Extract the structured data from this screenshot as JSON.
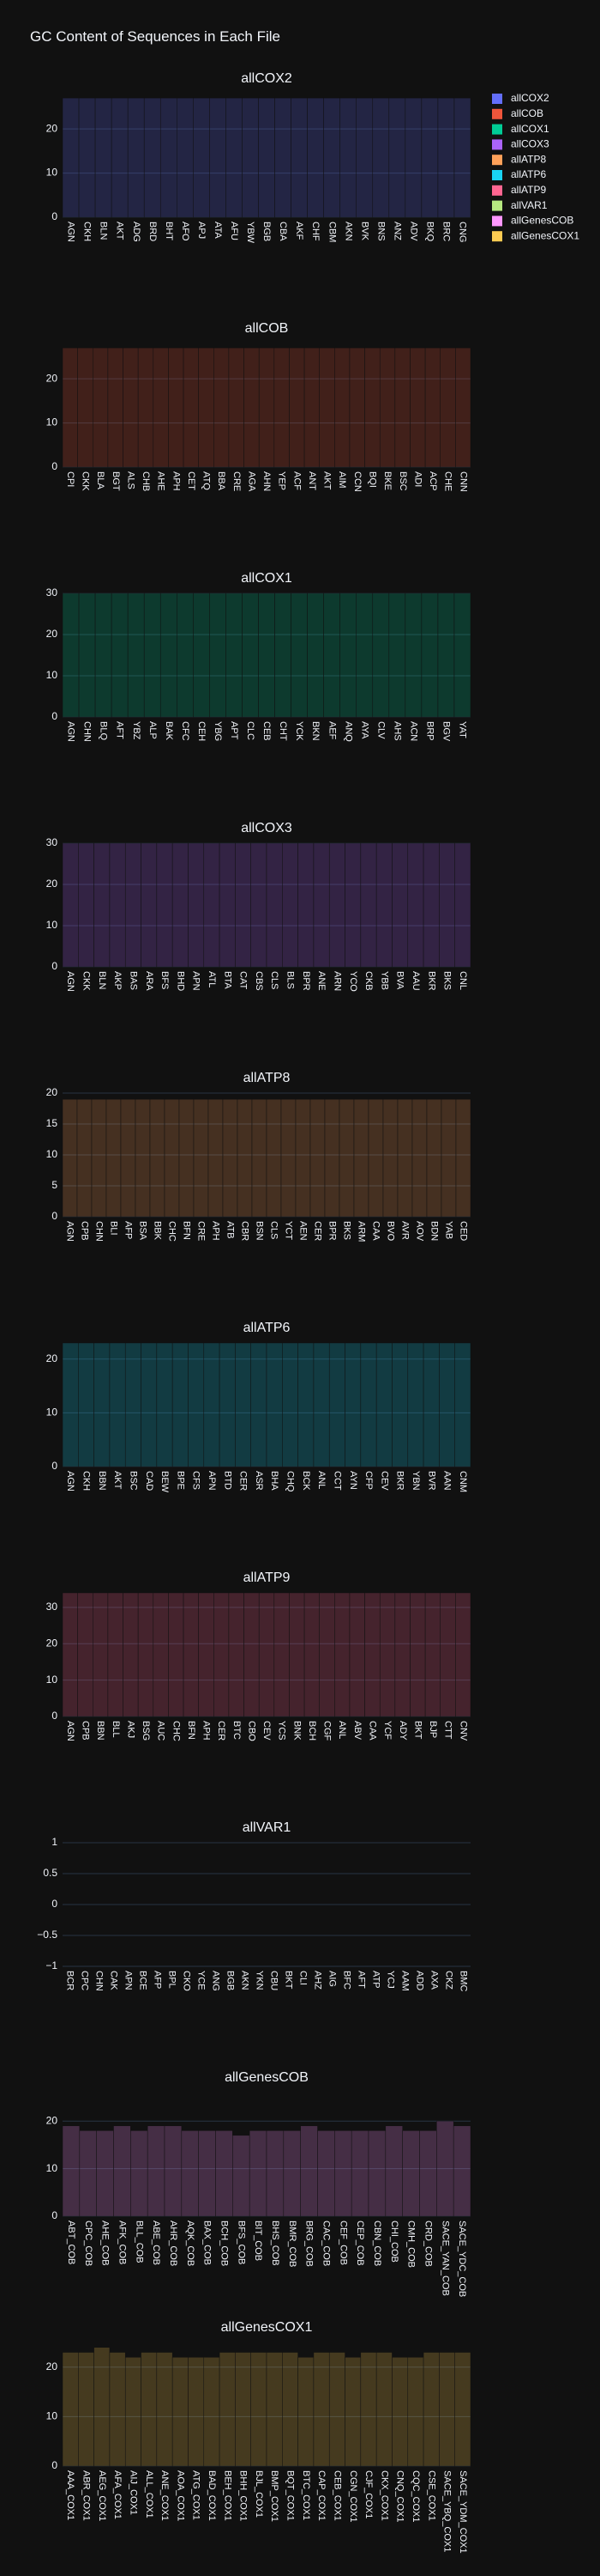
{
  "title": "GC Content of Sequences in Each File",
  "chart_data": [
    {
      "type": "bar",
      "title": "allCOX2",
      "color": "#636efa",
      "ylim": [
        0,
        28
      ],
      "yticks": [
        0,
        10,
        20
      ],
      "grid": true,
      "categories": [
        "AGN",
        "CKH",
        "BLN",
        "AKT",
        "ADG",
        "BRD",
        "BHT",
        "AFO",
        "APJ",
        "ATA",
        "AFU",
        "YBW",
        "BGB",
        "CBA",
        "AKF",
        "CHF",
        "CBM",
        "AKN",
        "BVK",
        "BNS",
        "ANZ",
        "ADV",
        "BKQ",
        "BRC",
        "CNG"
      ],
      "values": [
        27,
        27,
        27,
        27,
        27,
        27,
        27,
        27,
        27,
        27,
        27,
        27,
        27,
        27,
        27,
        27,
        27,
        27,
        27,
        27,
        27,
        27,
        27,
        27,
        27
      ]
    },
    {
      "type": "bar",
      "title": "allCOB",
      "color": "#EF553B",
      "ylim": [
        0,
        28
      ],
      "yticks": [
        0,
        10,
        20
      ],
      "grid": true,
      "categories": [
        "CPI",
        "CKK",
        "BLA",
        "BGT",
        "ALS",
        "CHB",
        "AHE",
        "APH",
        "CET",
        "ATQ",
        "BBA",
        "CRE",
        "AGA",
        "AHN",
        "YEP",
        "ACF",
        "ANT",
        "AKT",
        "AIM",
        "CCN",
        "BQI",
        "BKE",
        "BSC",
        "ADI",
        "ACP",
        "CHE",
        "CNN"
      ],
      "values": [
        27,
        27,
        27,
        27,
        27,
        27,
        27,
        27,
        27,
        27,
        27,
        27,
        27,
        27,
        27,
        27,
        27,
        27,
        27,
        27,
        27,
        27,
        27,
        27,
        27,
        27,
        27
      ]
    },
    {
      "type": "bar",
      "title": "allCOX1",
      "color": "#00cc96",
      "ylim": [
        0,
        30
      ],
      "yticks": [
        0,
        10,
        20,
        30
      ],
      "grid": true,
      "categories": [
        "AGN",
        "CHN",
        "BLQ",
        "AFT",
        "YBZ",
        "ALP",
        "BAK",
        "CFC",
        "CEH",
        "YBG",
        "APT",
        "CLC",
        "CEB",
        "CHT",
        "YCK",
        "BKN",
        "AEF",
        "ANQ",
        "AYA",
        "CLV",
        "AHS",
        "ACN",
        "BRP",
        "BGV",
        "YAT"
      ],
      "values": [
        30,
        30,
        30,
        30,
        30,
        30,
        30,
        30,
        30,
        30,
        30,
        30,
        30,
        30,
        30,
        30,
        30,
        30,
        30,
        30,
        30,
        30,
        30,
        30,
        30
      ]
    },
    {
      "type": "bar",
      "title": "allCOX3",
      "color": "#ab63fa",
      "ylim": [
        0,
        30
      ],
      "yticks": [
        0,
        10,
        20,
        30
      ],
      "grid": true,
      "categories": [
        "AGN",
        "CKK",
        "BLN",
        "AKP",
        "BAS",
        "ARA",
        "BFS",
        "BHD",
        "APN",
        "ATL",
        "BTA",
        "CAT",
        "CBS",
        "CLS",
        "BLS",
        "BPR",
        "ANE",
        "ARN",
        "YCO",
        "CKB",
        "YBB",
        "BVA",
        "AAU",
        "BKR",
        "BKS",
        "CNL"
      ],
      "values": [
        30,
        30,
        30,
        30,
        30,
        30,
        30,
        30,
        30,
        30,
        30,
        30,
        30,
        30,
        30,
        30,
        30,
        30,
        30,
        30,
        30,
        30,
        30,
        30,
        30,
        30
      ]
    },
    {
      "type": "bar",
      "title": "allATP8",
      "color": "#FFA15A",
      "ylim": [
        0,
        20
      ],
      "yticks": [
        0,
        5,
        10,
        15,
        20
      ],
      "grid": true,
      "categories": [
        "AGN",
        "CPB",
        "CHN",
        "BLI",
        "AFP",
        "BSA",
        "BBK",
        "CHC",
        "BFN",
        "CRE",
        "APH",
        "ATB",
        "CBR",
        "BSN",
        "CLS",
        "YCT",
        "AEN",
        "CER",
        "BPR",
        "BKS",
        "ARM",
        "CAA",
        "BVO",
        "AVR",
        "AOV",
        "BDN",
        "YAB",
        "CED"
      ],
      "values": [
        19,
        19,
        19,
        19,
        19,
        19,
        19,
        19,
        19,
        19,
        19,
        19,
        19,
        19,
        19,
        19,
        19,
        19,
        19,
        19,
        19,
        19,
        19,
        19,
        19,
        19,
        19,
        19
      ]
    },
    {
      "type": "bar",
      "title": "allATP6",
      "color": "#19d3f3",
      "ylim": [
        0,
        23
      ],
      "yticks": [
        0,
        10,
        20
      ],
      "grid": true,
      "categories": [
        "AGN",
        "CKH",
        "BBN",
        "AKT",
        "BSC",
        "CAD",
        "BEW",
        "BPE",
        "CFS",
        "APN",
        "BTD",
        "CER",
        "ASR",
        "BHA",
        "CHQ",
        "BCK",
        "ANL",
        "CCT",
        "AYN",
        "CFP",
        "CEV",
        "BKR",
        "YBN",
        "BVR",
        "AAN",
        "CNM"
      ],
      "values": [
        23,
        23,
        23,
        23,
        23,
        23,
        23,
        23,
        23,
        23,
        23,
        23,
        23,
        23,
        23,
        23,
        23,
        23,
        23,
        23,
        23,
        23,
        23,
        23,
        23,
        23
      ]
    },
    {
      "type": "bar",
      "title": "allATP9",
      "color": "#FF6692",
      "ylim": [
        0,
        34
      ],
      "yticks": [
        0,
        10,
        20,
        30
      ],
      "grid": true,
      "categories": [
        "AGN",
        "CPB",
        "BBN",
        "BLL",
        "AKJ",
        "BSG",
        "AUC",
        "CHC",
        "BFN",
        "APH",
        "CER",
        "BTC",
        "CBO",
        "CEV",
        "YCS",
        "BNK",
        "BCH",
        "CGF",
        "ANL",
        "ABV",
        "CAA",
        "YCF",
        "ADY",
        "BKT",
        "BJP",
        "CTT",
        "CNV"
      ],
      "values": [
        34,
        34,
        34,
        34,
        34,
        34,
        34,
        34,
        34,
        34,
        34,
        34,
        34,
        34,
        34,
        34,
        34,
        34,
        34,
        34,
        34,
        34,
        34,
        34,
        34,
        34,
        34
      ]
    },
    {
      "type": "bar",
      "title": "allVAR1",
      "color": "#B6E880",
      "ylim": [
        -1,
        1
      ],
      "yticks": [
        {
          "value": -1,
          "label": "−1"
        },
        {
          "value": -0.5,
          "label": "−0.5"
        },
        0,
        0.5,
        1
      ],
      "grid": true,
      "categories": [
        "BCR",
        "CPC",
        "CHN",
        "CAK",
        "APN",
        "BCE",
        "AFP",
        "BPL",
        "CKO",
        "YCE",
        "ANG",
        "BGB",
        "AKN",
        "YKN",
        "CBU",
        "BKT",
        "CLI",
        "AHZ",
        "AIG",
        "BFC",
        "AFT",
        "ATP",
        "YCJ",
        "AAM",
        "ADD",
        "AXA",
        "CKZ",
        "BMC"
      ],
      "values": [
        null,
        null,
        null,
        null,
        null,
        null,
        null,
        null,
        null,
        null,
        null,
        null,
        null,
        null,
        null,
        null,
        null,
        null,
        null,
        null,
        null,
        null,
        null,
        null,
        null,
        null,
        null,
        null
      ]
    },
    {
      "type": "bar",
      "title": "allGenesCOB",
      "color": "#FF97FF",
      "ylim": [
        0,
        26
      ],
      "yticks": [
        0,
        10,
        20
      ],
      "grid": true,
      "categories": [
        "ABT_COB",
        "CPC_COB",
        "AHE_COB",
        "AFK_COB",
        "BLL_COB",
        "ABE_COB",
        "AHR_COB",
        "AQK_COB",
        "BAX_COB",
        "BCH_COB",
        "BFS_COB",
        "BIT_COB",
        "BHS_COB",
        "BMR_COB",
        "BRG_COB",
        "CAC_COB",
        "CEF_COB",
        "CEP_COB",
        "CBN_COB",
        "CHI_COB",
        "CMH_COB",
        "CRD_COB",
        "SACE_YAN_COB",
        "SACE_YDC_COB"
      ],
      "values": [
        19,
        18,
        18,
        19,
        18,
        19,
        19,
        18,
        18,
        18,
        17,
        18,
        18,
        18,
        19,
        18,
        18,
        18,
        18,
        19,
        18,
        18,
        20,
        19
      ]
    },
    {
      "type": "bar",
      "title": "allGenesCOX1",
      "color": "#FECB52",
      "ylim": [
        0,
        25
      ],
      "yticks": [
        0,
        10,
        20
      ],
      "grid": true,
      "categories": [
        "AAA_COX1",
        "ABR_COX1",
        "AEG_COX1",
        "AFA_COX1",
        "AIJ_COX1",
        "ALL_COX1",
        "ANE_COX1",
        "AOA_COX1",
        "ATG_COX1",
        "BAD_COX1",
        "BEH_COX1",
        "BHH_COX1",
        "BJL_COX1",
        "BMP_COX1",
        "BQT_COX1",
        "BTC_COX1",
        "CAP_COX1",
        "CEB_COX1",
        "CGN_COX1",
        "CJF_COX1",
        "CKX_COX1",
        "CNQ_COX1",
        "CQC_COX1",
        "CSE_COX1",
        "SACE_YBQ_COX1",
        "SACE_YDM_COX1"
      ],
      "values": [
        23,
        23,
        24,
        23,
        22,
        23,
        23,
        22,
        22,
        22,
        23,
        23,
        23,
        23,
        23,
        22,
        23,
        23,
        22,
        23,
        23,
        22,
        22,
        23,
        23,
        23
      ]
    }
  ]
}
